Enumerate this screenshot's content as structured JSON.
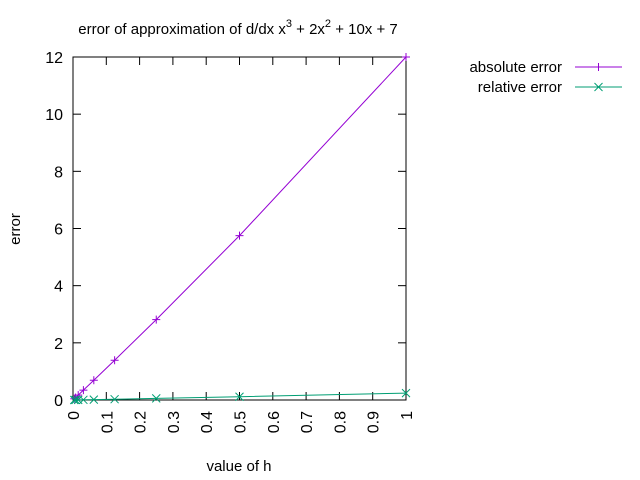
{
  "chart_data": {
    "type": "line",
    "title": {
      "base": "error of approximation of d/dx x",
      "sup1": "3",
      "mid": " + 2x",
      "sup2": "2",
      "tail": " + 10x + 7"
    },
    "xlabel": "value of h",
    "ylabel": "error",
    "xlim": [
      0,
      1
    ],
    "ylim": [
      0,
      12
    ],
    "xticks": [
      "0",
      "0.1",
      "0.2",
      "0.3",
      "0.4",
      "0.5",
      "0.6",
      "0.7",
      "0.8",
      "0.9",
      "1"
    ],
    "xtick_values": [
      0,
      0.1,
      0.2,
      0.3,
      0.4,
      0.5,
      0.6,
      0.7,
      0.8,
      0.9,
      1
    ],
    "yticks": [
      "0",
      "2",
      "4",
      "6",
      "8",
      "10",
      "12"
    ],
    "ytick_values": [
      0,
      2,
      4,
      6,
      8,
      10,
      12
    ],
    "grid": false,
    "legend_position": "outside-right",
    "series": [
      {
        "name": "absolute error",
        "color": "#9400d3",
        "marker": "plus",
        "x": [
          1,
          0.5,
          0.25,
          0.125,
          0.0625,
          0.03125,
          0.015625,
          0.0078125,
          0.00390625
        ],
        "y": [
          12,
          5.75,
          2.8125,
          1.390625,
          0.691406,
          0.344727,
          0.172119,
          0.085999,
          0.042984
        ]
      },
      {
        "name": "relative error",
        "color": "#009e73",
        "marker": "cross",
        "x": [
          1,
          0.5,
          0.25,
          0.125,
          0.0625,
          0.03125,
          0.015625,
          0.0078125,
          0.00390625
        ],
        "y": [
          0.24,
          0.115,
          0.05625,
          0.0278,
          0.0138,
          0.0069,
          0.0034,
          0.0017,
          0.0009
        ]
      }
    ]
  }
}
